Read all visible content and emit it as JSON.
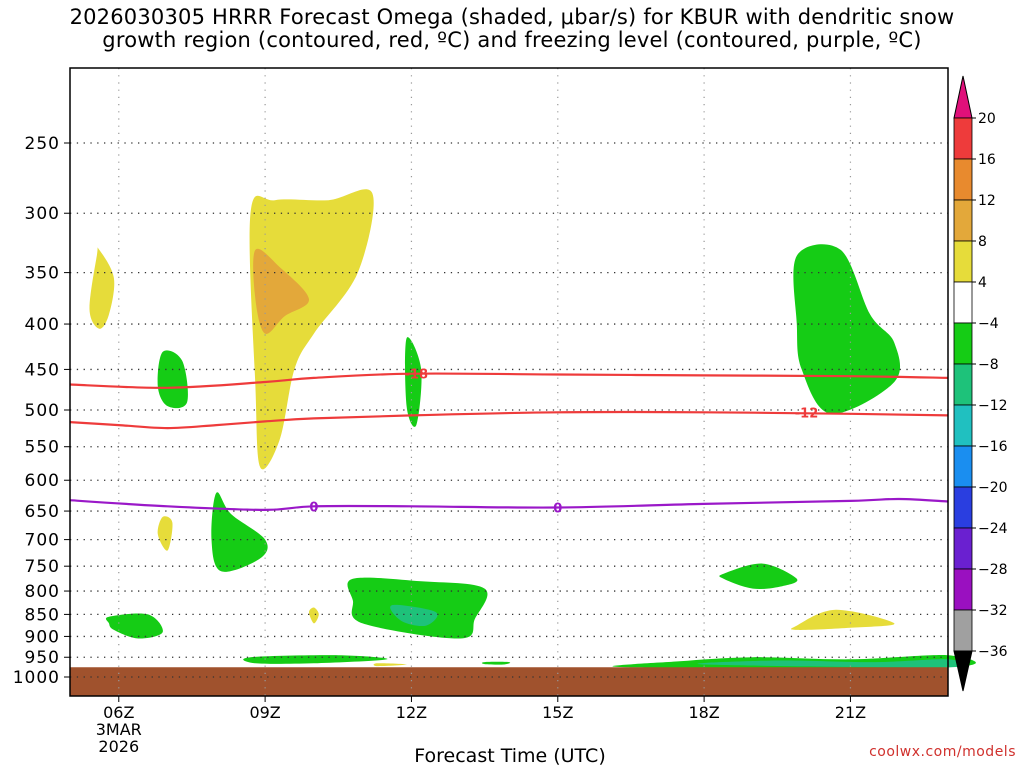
{
  "header": {
    "title_line1": "2026030305 HRRR Forecast Omega (shaded, μbar/s) for KBUR with dendritic snow",
    "title_line2": "growth region (contoured, red, ºC) and freezing level (contoured, purple, ºC)"
  },
  "credit": "coolwx.com/models",
  "chart_data": {
    "type": "contour",
    "xlabel": "Forecast Time (UTC)",
    "x_ticks": [
      {
        "label": "06Z",
        "sub": [
          "3MAR",
          "2026"
        ],
        "hour": 6
      },
      {
        "label": "09Z",
        "hour": 9
      },
      {
        "label": "12Z",
        "hour": 12
      },
      {
        "label": "15Z",
        "hour": 15
      },
      {
        "label": "18Z",
        "hour": 18
      },
      {
        "label": "21Z",
        "hour": 21
      }
    ],
    "x_range_hours": [
      5,
      23
    ],
    "y_axis": {
      "scale": "pressure (log)",
      "range_mb": [
        1050,
        200
      ],
      "ticks": [
        250,
        300,
        350,
        400,
        450,
        500,
        550,
        600,
        650,
        700,
        750,
        800,
        850,
        900,
        950,
        1000
      ]
    },
    "grid": true,
    "colorbar": {
      "placement": "right",
      "labels": [
        "20",
        "16",
        "12",
        "8",
        "4",
        "−4",
        "−8",
        "−12",
        "−16",
        "−20",
        "−24",
        "−28",
        "−32",
        "−36"
      ],
      "colors": [
        "#ee3b3b",
        "#e88a2e",
        "#e3a83a",
        "#e6dc3a",
        "#ffffff",
        "#15cc15",
        "#1ec27a",
        "#20c0c0",
        "#1a8ef0",
        "#2a3ee0",
        "#6a20d0",
        "#9a10c0",
        "#a0a0a0"
      ],
      "top_color": "#e0107a",
      "bottom_color": "#000000"
    },
    "ground": {
      "color": "#a0522d",
      "pressure_mb": 975
    },
    "contours": [
      {
        "label": "-18",
        "color": "#ee3b3b",
        "points": [
          [
            5,
            468
          ],
          [
            7,
            472
          ],
          [
            9,
            465
          ],
          [
            10,
            460
          ],
          [
            12,
            455
          ],
          [
            15,
            456
          ],
          [
            18,
            457
          ],
          [
            21,
            458
          ],
          [
            23,
            460
          ]
        ]
      },
      {
        "label": "-12",
        "color": "#ee3b3b",
        "points": [
          [
            5,
            516
          ],
          [
            6,
            520
          ],
          [
            7,
            524
          ],
          [
            8,
            520
          ],
          [
            9,
            515
          ],
          [
            10,
            511
          ],
          [
            12,
            507
          ],
          [
            15,
            503
          ],
          [
            18,
            503
          ],
          [
            21,
            505
          ],
          [
            23,
            507
          ]
        ]
      },
      {
        "label": "0",
        "color": "#9a18c8",
        "points": [
          [
            5,
            632
          ],
          [
            7,
            642
          ],
          [
            9,
            648
          ],
          [
            10,
            642
          ],
          [
            12,
            642
          ],
          [
            15,
            644
          ],
          [
            18,
            638
          ],
          [
            21,
            633
          ],
          [
            22,
            630
          ],
          [
            23,
            634
          ]
        ]
      }
    ],
    "contour_labels": [
      {
        "text": "-18",
        "color": "#ee3b3b",
        "hour": 12.1,
        "mb": 455
      },
      {
        "text": "-12",
        "color": "#ee3b3b",
        "hour": 20.1,
        "mb": 503
      },
      {
        "text": "0",
        "color": "#9a18c8",
        "hour": 10.0,
        "mb": 642
      },
      {
        "text": "0",
        "color": "#9a18c8",
        "hour": 15.0,
        "mb": 644
      }
    ],
    "shaded_regions": [
      {
        "bin": "4 to 8",
        "color": "#e6dc3a",
        "points": [
          [
            5.6,
            330
          ],
          [
            5.9,
            355
          ],
          [
            5.8,
            390
          ],
          [
            5.6,
            405
          ],
          [
            5.4,
            385
          ],
          [
            5.55,
            335
          ]
        ]
      },
      {
        "bin": "4 to 8",
        "color": "#e6dc3a",
        "points": [
          [
            9.2,
            290
          ],
          [
            10.3,
            290
          ],
          [
            11.2,
            285
          ],
          [
            10.9,
            350
          ],
          [
            10.0,
            410
          ],
          [
            9.6,
            450
          ],
          [
            9.3,
            540
          ],
          [
            8.9,
            580
          ],
          [
            8.8,
            470
          ],
          [
            8.7,
            300
          ]
        ]
      },
      {
        "bin": "8 to 12",
        "color": "#e3a83a",
        "points": [
          [
            8.8,
            330
          ],
          [
            9.3,
            345
          ],
          [
            9.9,
            375
          ],
          [
            9.4,
            392
          ],
          [
            9.0,
            410
          ],
          [
            8.8,
            375
          ]
        ]
      },
      {
        "bin": "-4 to -8",
        "color": "#15cc15",
        "points": [
          [
            6.9,
            430
          ],
          [
            7.3,
            440
          ],
          [
            7.4,
            490
          ],
          [
            7.0,
            495
          ],
          [
            6.8,
            470
          ]
        ]
      },
      {
        "bin": "-4 to -8",
        "color": "#15cc15",
        "points": [
          [
            11.9,
            415
          ],
          [
            12.2,
            450
          ],
          [
            12.1,
            520
          ],
          [
            11.9,
            495
          ]
        ]
      },
      {
        "bin": "-4 to -8",
        "color": "#15cc15",
        "points": [
          [
            19.9,
            335
          ],
          [
            20.8,
            330
          ],
          [
            21.4,
            390
          ],
          [
            21.9,
            420
          ],
          [
            21.9,
            465
          ],
          [
            20.6,
            505
          ],
          [
            20.0,
            450
          ],
          [
            19.9,
            400
          ]
        ]
      },
      {
        "bin": "4 to 8",
        "color": "#e6dc3a",
        "points": [
          [
            6.9,
            660
          ],
          [
            7.1,
            670
          ],
          [
            7.0,
            720
          ],
          [
            6.8,
            690
          ]
        ]
      },
      {
        "bin": "-4 to -8",
        "color": "#15cc15",
        "points": [
          [
            8.0,
            620
          ],
          [
            8.3,
            655
          ],
          [
            9.0,
            700
          ],
          [
            8.9,
            735
          ],
          [
            8.1,
            760
          ],
          [
            7.9,
            700
          ]
        ]
      },
      {
        "bin": "4 to 8",
        "color": "#e6dc3a",
        "points": [
          [
            10.0,
            835
          ],
          [
            10.1,
            850
          ],
          [
            10.0,
            870
          ],
          [
            9.9,
            845
          ]
        ]
      },
      {
        "bin": "-4 to -8",
        "color": "#15cc15",
        "points": [
          [
            10.8,
            775
          ],
          [
            12.2,
            780
          ],
          [
            13.5,
            795
          ],
          [
            13.3,
            860
          ],
          [
            13.0,
            905
          ],
          [
            11.0,
            870
          ],
          [
            10.8,
            820
          ]
        ]
      },
      {
        "bin": "-8 to -12",
        "color": "#1ec27a",
        "points": [
          [
            11.6,
            830
          ],
          [
            12.5,
            845
          ],
          [
            12.3,
            875
          ],
          [
            11.8,
            865
          ]
        ]
      },
      {
        "bin": "-4 to -8",
        "color": "#15cc15",
        "points": [
          [
            18.4,
            765
          ],
          [
            19.2,
            745
          ],
          [
            19.9,
            775
          ],
          [
            19.6,
            790
          ],
          [
            19.0,
            795
          ],
          [
            18.4,
            775
          ]
        ]
      },
      {
        "bin": "-4 to -8",
        "color": "#15cc15",
        "points": [
          [
            5.8,
            855
          ],
          [
            6.6,
            850
          ],
          [
            6.9,
            890
          ],
          [
            6.4,
            905
          ],
          [
            5.9,
            885
          ],
          [
            5.8,
            870
          ]
        ]
      },
      {
        "bin": "4 to 8",
        "color": "#e6dc3a",
        "points": [
          [
            19.9,
            875
          ],
          [
            20.7,
            840
          ],
          [
            21.9,
            870
          ],
          [
            21.0,
            880
          ],
          [
            19.9,
            885
          ]
        ]
      },
      {
        "bin": "-4 to -8",
        "color": "#15cc15",
        "points": [
          [
            8.7,
            950
          ],
          [
            10.5,
            945
          ],
          [
            11.5,
            955
          ],
          [
            10.0,
            965
          ],
          [
            8.8,
            965
          ]
        ]
      },
      {
        "bin": "4 to 8",
        "color": "#e6dc3a",
        "points": [
          [
            11.3,
            965
          ],
          [
            11.9,
            968
          ],
          [
            11.3,
            972
          ]
        ]
      },
      {
        "bin": "-4 to -8",
        "color": "#15cc15",
        "points": [
          [
            13.5,
            962
          ],
          [
            14.0,
            962
          ],
          [
            13.9,
            968
          ],
          [
            13.5,
            967
          ]
        ]
      },
      {
        "bin": "-4 to -8",
        "color": "#15cc15",
        "points": [
          [
            16.4,
            975
          ],
          [
            17.5,
            960
          ],
          [
            19.0,
            950
          ],
          [
            21.0,
            955
          ],
          [
            23.0,
            945
          ],
          [
            23.0,
            975
          ]
        ]
      },
      {
        "bin": "-8 to -12",
        "color": "#1ec27a",
        "points": [
          [
            18.0,
            968
          ],
          [
            19.5,
            958
          ],
          [
            21.5,
            962
          ],
          [
            23.0,
            955
          ],
          [
            23.0,
            975
          ]
        ]
      }
    ]
  }
}
